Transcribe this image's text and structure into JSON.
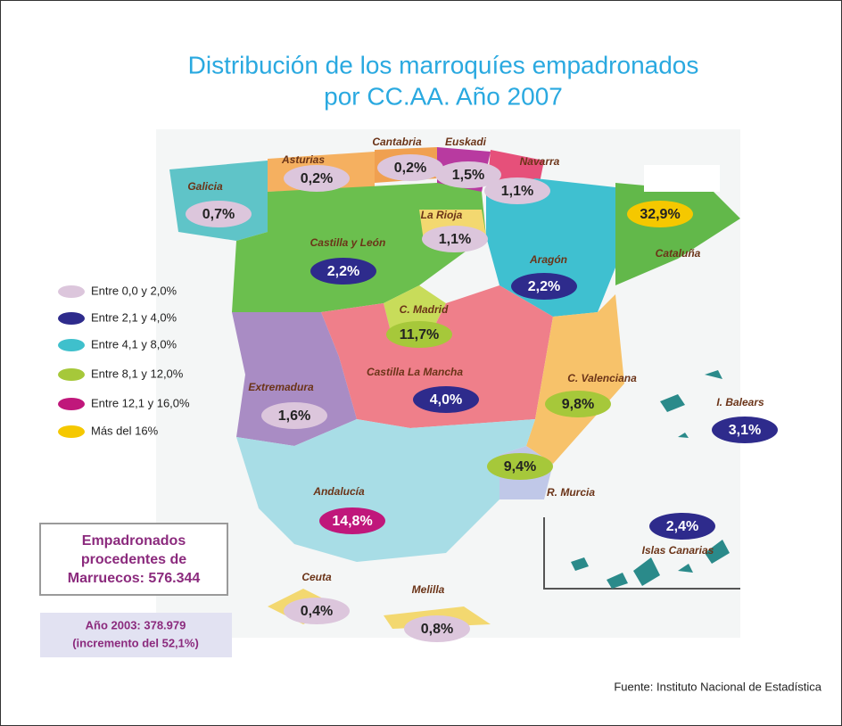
{
  "title": [
    "Distribución de los marroquíes empadronados",
    "por CC.AA. Año 2007"
  ],
  "legend": [
    {
      "label": "Entre 0,0 y 2,0%",
      "color": "#dcc6dc"
    },
    {
      "label": "Entre 2,1 y  4,0%",
      "color": "#2e2b8c"
    },
    {
      "label": "Entre 4,1 y 8,0%",
      "color": "#3fc0cc"
    },
    {
      "label": "Entre 8,1 y 12,0%",
      "color": "#a6c83a"
    },
    {
      "label": "Entre 12,1 y 16,0%",
      "color": "#c0177b"
    },
    {
      "label": "Más del 16%",
      "color": "#f5c800"
    }
  ],
  "regions": [
    {
      "name": "Galicia",
      "value": "0,7%",
      "class": 0
    },
    {
      "name": "Asturias",
      "value": "0,2%",
      "class": 0
    },
    {
      "name": "Cantabria",
      "value": "0,2%",
      "class": 0
    },
    {
      "name": "Euskadi",
      "value": "1,5%",
      "class": 0
    },
    {
      "name": "Navarra",
      "value": "1,1%",
      "class": 0
    },
    {
      "name": "La Rioja",
      "value": "1,1%",
      "class": 0
    },
    {
      "name": "Castilla y León",
      "value": "2,2%",
      "class": 1
    },
    {
      "name": "Aragón",
      "value": "2,2%",
      "class": 1
    },
    {
      "name": "Cataluña",
      "value": "32,9%",
      "class": 5
    },
    {
      "name": "C. Madrid",
      "value": "11,7%",
      "class": 3
    },
    {
      "name": "Castilla La Mancha",
      "value": "4,0%",
      "class": 1
    },
    {
      "name": "Extremadura",
      "value": "1,6%",
      "class": 0
    },
    {
      "name": "C. Valenciana",
      "value": "9,8%",
      "class": 3
    },
    {
      "name": "I. Balears",
      "value": "3,1%",
      "class": 1
    },
    {
      "name": "R. Murcia",
      "value": "9,4%",
      "class": 3
    },
    {
      "name": "Andalucía",
      "value": "14,8%",
      "class": 4
    },
    {
      "name": "Islas Canarias",
      "value": "2,4%",
      "class": 1
    },
    {
      "name": "Ceuta",
      "value": "0,4%",
      "class": 0
    },
    {
      "name": "Melilla",
      "value": "0,8%",
      "class": 0
    }
  ],
  "summary": [
    "Empadronados",
    "procedentes de",
    "Marruecos: 576.344"
  ],
  "previous": [
    "Año 2003: 378.979",
    "(incremento del 52,1%)"
  ],
  "source": "Fuente: Instituto Nacional de Estadística"
}
